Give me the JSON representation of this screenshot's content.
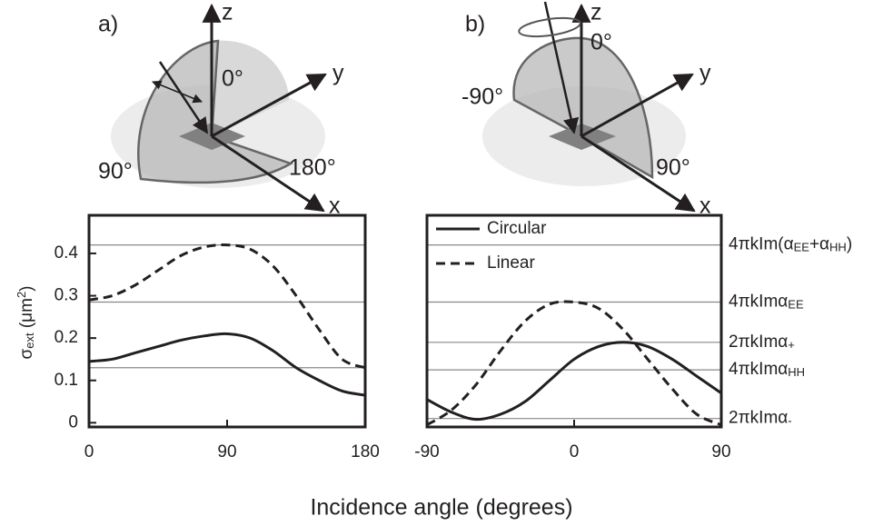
{
  "diagrams": [
    {
      "label": "a)",
      "axes": [
        "z",
        "y",
        "x"
      ],
      "angles": [
        "0°",
        "90°",
        "180°"
      ]
    },
    {
      "label": "b)",
      "axes": [
        "z",
        "y",
        "x"
      ],
      "angles": [
        "0°",
        "-90°",
        "90°"
      ]
    }
  ],
  "xlabel": "Incidence angle (degrees)",
  "chart_data": [
    {
      "type": "line",
      "ylabel": [
        "σ",
        "ext",
        " (μm",
        "2",
        ")"
      ],
      "x": [
        0,
        15,
        30,
        45,
        60,
        75,
        90,
        105,
        120,
        135,
        150,
        165,
        180
      ],
      "xlim": [
        0,
        180
      ],
      "xticks": [
        0,
        90,
        180
      ],
      "ylim": [
        -0.01,
        0.49
      ],
      "yticks": [
        0,
        0.1,
        0.2,
        0.3,
        0.4
      ],
      "reference_lines": [
        0.42,
        0.285,
        0.13
      ],
      "series": [
        {
          "color": "#231f20",
          "linestyle": "dashed",
          "values": [
            0.29,
            0.3,
            0.325,
            0.36,
            0.395,
            0.415,
            0.42,
            0.41,
            0.37,
            0.3,
            0.22,
            0.15,
            0.13
          ]
        },
        {
          "color": "#231f20",
          "linestyle": "solid",
          "values": [
            0.145,
            0.15,
            0.165,
            0.18,
            0.195,
            0.205,
            0.21,
            0.2,
            0.17,
            0.13,
            0.1,
            0.075,
            0.065
          ]
        }
      ]
    },
    {
      "type": "line",
      "x": [
        -90,
        -75,
        -60,
        -45,
        -30,
        -15,
        0,
        15,
        30,
        45,
        60,
        75,
        90
      ],
      "xlim": [
        -90,
        90
      ],
      "xticks": [
        -90,
        0,
        90
      ],
      "y2lim": [
        -0.01,
        0.49
      ],
      "y2ticks": [
        {
          "value": 0.42,
          "label": [
            "4πkIm(α",
            "EE",
            "+α",
            "HH",
            ")"
          ]
        },
        {
          "value": 0.285,
          "label": [
            "4πkImα",
            "EE"
          ]
        },
        {
          "value": 0.19,
          "label": [
            "2πkImα",
            "+"
          ]
        },
        {
          "value": 0.125,
          "label": [
            "4πkImα",
            "HH"
          ]
        },
        {
          "value": 0.01,
          "label": [
            "2πkImα",
            "-"
          ]
        }
      ],
      "grid": true,
      "legend": "upper left",
      "series": [
        {
          "name": "Circular",
          "color": "#231f20",
          "linestyle": "solid",
          "axis": "y2",
          "values": [
            0.055,
            0.025,
            0.008,
            0.02,
            0.05,
            0.1,
            0.15,
            0.18,
            0.19,
            0.18,
            0.15,
            0.11,
            0.07
          ]
        },
        {
          "name": "Linear",
          "color": "#231f20",
          "linestyle": "dashed",
          "axis": "y2",
          "values": [
            -0.005,
            0.03,
            0.09,
            0.17,
            0.24,
            0.28,
            0.285,
            0.27,
            0.22,
            0.15,
            0.08,
            0.02,
            -0.005
          ]
        }
      ]
    }
  ]
}
